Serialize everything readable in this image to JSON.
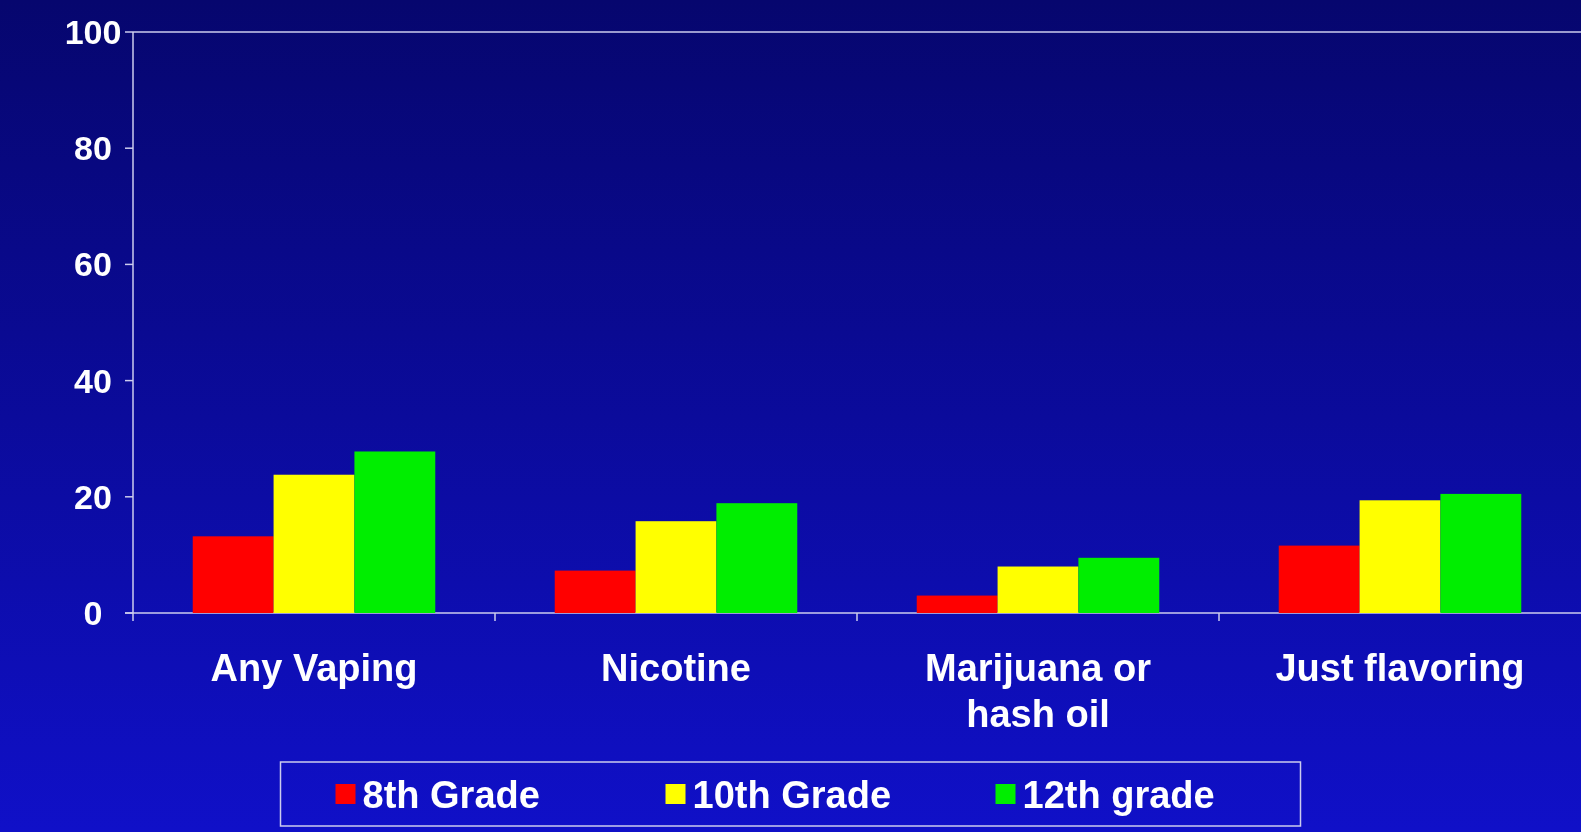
{
  "chart_data": {
    "type": "bar",
    "categories": [
      "Any Vaping",
      "Nicotine",
      "Marijuana or hash oil",
      "Just flavoring"
    ],
    "series": [
      {
        "name": "8th Grade",
        "color": "#ff0000",
        "values": [
          13.2,
          7.3,
          3.0,
          11.6
        ]
      },
      {
        "name": "10th Grade",
        "color": "#ffff00",
        "values": [
          23.8,
          15.8,
          8.0,
          19.4
        ]
      },
      {
        "name": "12th grade",
        "color": "#00ee00",
        "values": [
          27.8,
          18.9,
          9.5,
          20.5
        ]
      }
    ],
    "ylim": [
      0,
      100
    ],
    "yticks": [
      0,
      20,
      40,
      60,
      80,
      100
    ],
    "grid": false,
    "legend": "bottom"
  }
}
